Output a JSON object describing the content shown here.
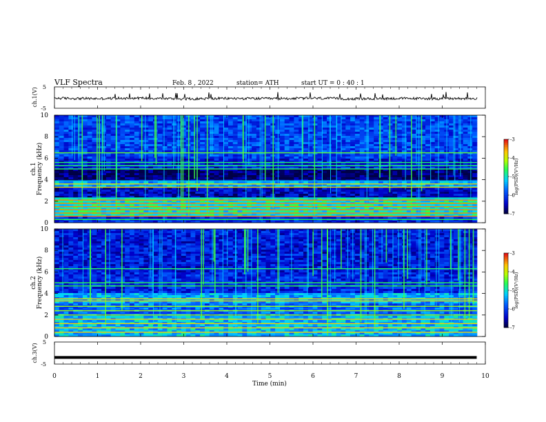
{
  "header": {
    "title": "VLF  Spectra",
    "date": "Feb. 8  , 2022",
    "station": "station= ATH",
    "start": "start  UT  =   0  : 40 : 1"
  },
  "colors": {
    "low": "#000060",
    "mid": "#00c8ff",
    "high": "#40ff40",
    "peak": "#ff2020",
    "axis": "#000000"
  },
  "chart_data": [
    {
      "type": "line",
      "panel": "ch1-waveform",
      "ylabel": "ch.1(V)",
      "ylim": [
        -5,
        5
      ],
      "yticks": [
        "5",
        "-5"
      ],
      "baseline_value": -0.5,
      "xlim": [
        0,
        10
      ],
      "series": [
        {
          "x": [
            0,
            1,
            2,
            3,
            4,
            5,
            6,
            7,
            8,
            9,
            9.8
          ],
          "values": [
            -0.3,
            -0.5,
            -0.2,
            -0.6,
            -0.4,
            -0.5,
            -0.3,
            -0.6,
            -0.4,
            -0.5,
            -0.4
          ]
        }
      ]
    },
    {
      "type": "heatmap",
      "panel": "ch1-spectrogram",
      "ylabel": "Frequency  (kHz)",
      "ylabel2": "ch.1",
      "ylim": [
        0,
        10
      ],
      "yticks": [
        "0",
        "2",
        "4",
        "6",
        "8",
        "10"
      ],
      "xlim": [
        0,
        10
      ],
      "colorbar": {
        "label": "log(PSD)(V²/Hz)",
        "range": [
          -7,
          -3
        ],
        "ticks": [
          "-3",
          "-4",
          "-5",
          "-6",
          "-7"
        ]
      },
      "bands": [
        {
          "from": 0,
          "to": 0.5,
          "level": -6.2
        },
        {
          "from": 0.5,
          "to": 2.3,
          "level": -5.0
        },
        {
          "from": 2.3,
          "to": 3.2,
          "level": -6.5
        },
        {
          "from": 3.2,
          "to": 3.8,
          "level": -5.4
        },
        {
          "from": 3.8,
          "to": 5.0,
          "level": -6.9
        },
        {
          "from": 5.0,
          "to": 6.0,
          "level": -6.3
        },
        {
          "from": 6.0,
          "to": 10,
          "level": -6.0
        }
      ],
      "tones_khz": [
        0.3,
        0.6,
        0.9,
        1.2,
        1.5,
        1.8,
        2.1,
        2.3,
        3.3,
        3.6,
        3.9,
        5.0,
        5.3,
        5.6,
        6.5
      ]
    },
    {
      "type": "heatmap",
      "panel": "ch2-spectrogram",
      "ylabel": "Frequency  (kHz)",
      "ylabel2": "ch.2",
      "ylim": [
        0,
        10
      ],
      "yticks": [
        "0",
        "2",
        "4",
        "6",
        "8",
        "10"
      ],
      "xlim": [
        0,
        10
      ],
      "colorbar": {
        "label": "log(PSD)(V²/Hz)",
        "range": [
          -7,
          -3
        ],
        "ticks": [
          "-3",
          "-4",
          "-5",
          "-6",
          "-7"
        ]
      },
      "bands": [
        {
          "from": 0,
          "to": 2.0,
          "level": -5.3
        },
        {
          "from": 2.0,
          "to": 3.0,
          "level": -5.8
        },
        {
          "from": 3.0,
          "to": 4.0,
          "level": -5.4
        },
        {
          "from": 4.0,
          "to": 6.0,
          "level": -6.2
        },
        {
          "from": 6.0,
          "to": 10,
          "level": -6.3
        }
      ],
      "tones_khz": [
        0.4,
        0.8,
        1.2,
        1.6,
        2.0,
        2.4,
        2.8,
        3.3,
        3.5,
        4.7,
        5.0,
        6.3
      ]
    },
    {
      "type": "line",
      "panel": "ch3-waveform",
      "ylabel": "ch.3(V)",
      "ylim": [
        -5,
        5
      ],
      "yticks": [
        "5",
        "-5"
      ],
      "baseline_value": -2,
      "xlim": [
        0,
        10
      ],
      "series": [
        {
          "x": [
            0,
            9.8
          ],
          "values": [
            -2,
            -2
          ]
        }
      ]
    }
  ],
  "xaxis": {
    "label": "Time  (min)",
    "ticks": [
      "0",
      "1",
      "2",
      "3",
      "4",
      "5",
      "6",
      "7",
      "8",
      "9",
      "10"
    ]
  }
}
